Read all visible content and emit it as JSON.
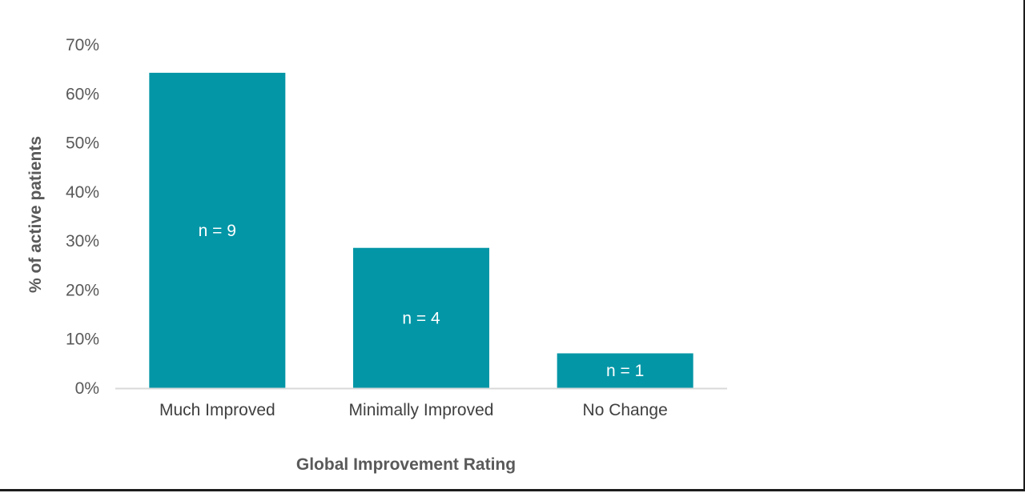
{
  "chart_data": {
    "type": "bar",
    "title": "",
    "xlabel": "Global Improvement Rating",
    "ylabel": "% of active patients",
    "categories": [
      "Much Improved",
      "Minimally Improved",
      "No Change"
    ],
    "values": [
      64.3,
      28.6,
      7.1
    ],
    "data_labels": [
      "n = 9",
      "n = 4",
      "n = 1"
    ],
    "ylim": [
      0,
      70
    ],
    "yticks": [
      0,
      10,
      20,
      30,
      40,
      50,
      60,
      70
    ],
    "ytick_labels": [
      "0%",
      "10%",
      "20%",
      "30%",
      "40%",
      "50%",
      "60%",
      "70%"
    ],
    "grid": false,
    "legend": "none",
    "bar_color": "#0396A6",
    "axis_color": "#D9D9D9"
  }
}
